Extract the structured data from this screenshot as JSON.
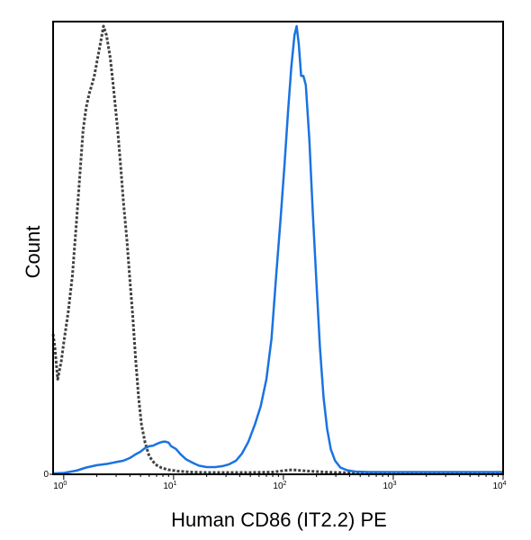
{
  "chart_data": {
    "type": "line",
    "title": "",
    "xlabel": "Human CD86 (IT2.2) PE",
    "ylabel": "Count",
    "x_scale": "log",
    "xlim": [
      0.8,
      10000
    ],
    "ylim": [
      0,
      100
    ],
    "grid": false,
    "legend": "none",
    "x_ticks": [
      {
        "value": 1,
        "base": "10",
        "exp": "0"
      },
      {
        "value": 10,
        "base": "10",
        "exp": "1"
      },
      {
        "value": 100,
        "base": "10",
        "exp": "2"
      },
      {
        "value": 1000,
        "base": "10",
        "exp": "3"
      },
      {
        "value": 10000,
        "base": "10",
        "exp": "4"
      }
    ],
    "y_ticks": [
      {
        "value": 0,
        "label": "0"
      }
    ],
    "series": [
      {
        "style": "dotted",
        "color": "#404040",
        "points": [
          [
            0.8,
            31
          ],
          [
            0.83,
            28
          ],
          [
            0.88,
            21
          ],
          [
            0.95,
            25
          ],
          [
            1.0,
            29
          ],
          [
            1.1,
            36
          ],
          [
            1.2,
            44
          ],
          [
            1.3,
            55
          ],
          [
            1.4,
            66
          ],
          [
            1.5,
            76
          ],
          [
            1.6,
            81
          ],
          [
            1.7,
            84
          ],
          [
            1.8,
            86
          ],
          [
            1.9,
            88
          ],
          [
            2.0,
            91
          ],
          [
            2.15,
            95
          ],
          [
            2.3,
            99
          ],
          [
            2.45,
            97
          ],
          [
            2.65,
            92
          ],
          [
            2.85,
            85
          ],
          [
            3.1,
            76
          ],
          [
            3.3,
            68
          ],
          [
            3.5,
            60
          ],
          [
            3.75,
            52
          ],
          [
            4.0,
            43
          ],
          [
            4.25,
            35
          ],
          [
            4.5,
            26
          ],
          [
            4.8,
            17
          ],
          [
            5.1,
            11
          ],
          [
            5.5,
            7
          ],
          [
            6.0,
            4
          ],
          [
            6.8,
            2.2
          ],
          [
            7.8,
            1.4
          ],
          [
            9.0,
            1.0
          ],
          [
            11,
            0.7
          ],
          [
            14,
            0.5
          ],
          [
            20,
            0.4
          ],
          [
            30,
            0.4
          ],
          [
            50,
            0.4
          ],
          [
            80,
            0.5
          ],
          [
            100,
            0.8
          ],
          [
            120,
            1.0
          ],
          [
            150,
            0.8
          ],
          [
            200,
            0.6
          ],
          [
            300,
            0.4
          ],
          [
            500,
            0.3
          ],
          [
            1000,
            0.3
          ],
          [
            3000,
            0.3
          ],
          [
            10000,
            0.3
          ]
        ]
      },
      {
        "style": "solid",
        "color": "#1a73e0",
        "points": [
          [
            0.8,
            0.2
          ],
          [
            1.0,
            0.3
          ],
          [
            1.3,
            0.8
          ],
          [
            1.6,
            1.5
          ],
          [
            2.0,
            2.0
          ],
          [
            2.5,
            2.3
          ],
          [
            3.0,
            2.7
          ],
          [
            3.5,
            3.0
          ],
          [
            4.0,
            3.6
          ],
          [
            4.5,
            4.4
          ],
          [
            5.0,
            5.0
          ],
          [
            5.5,
            5.8
          ],
          [
            6.0,
            6.2
          ],
          [
            6.5,
            6.3
          ],
          [
            7.0,
            6.7
          ],
          [
            7.5,
            7.0
          ],
          [
            8.0,
            7.2
          ],
          [
            8.5,
            7.2
          ],
          [
            9.0,
            7.0
          ],
          [
            9.5,
            6.2
          ],
          [
            10.5,
            5.6
          ],
          [
            11.5,
            4.5
          ],
          [
            13,
            3.3
          ],
          [
            15,
            2.5
          ],
          [
            17,
            1.9
          ],
          [
            20,
            1.6
          ],
          [
            24,
            1.6
          ],
          [
            28,
            1.8
          ],
          [
            32,
            2.2
          ],
          [
            37,
            3.0
          ],
          [
            42,
            4.6
          ],
          [
            48,
            7.2
          ],
          [
            55,
            11
          ],
          [
            62,
            15
          ],
          [
            70,
            21
          ],
          [
            78,
            30
          ],
          [
            86,
            44
          ],
          [
            94,
            56
          ],
          [
            102,
            68
          ],
          [
            110,
            80
          ],
          [
            118,
            90
          ],
          [
            126,
            97
          ],
          [
            132,
            99
          ],
          [
            138,
            95
          ],
          [
            145,
            88
          ],
          [
            152,
            88
          ],
          [
            160,
            86
          ],
          [
            172,
            74
          ],
          [
            185,
            58
          ],
          [
            200,
            42
          ],
          [
            215,
            28
          ],
          [
            232,
            17
          ],
          [
            250,
            10
          ],
          [
            270,
            5.5
          ],
          [
            295,
            3.0
          ],
          [
            330,
            1.5
          ],
          [
            380,
            0.9
          ],
          [
            450,
            0.6
          ],
          [
            600,
            0.5
          ],
          [
            1000,
            0.5
          ],
          [
            2000,
            0.5
          ],
          [
            5000,
            0.5
          ],
          [
            10000,
            0.5
          ]
        ]
      }
    ]
  }
}
